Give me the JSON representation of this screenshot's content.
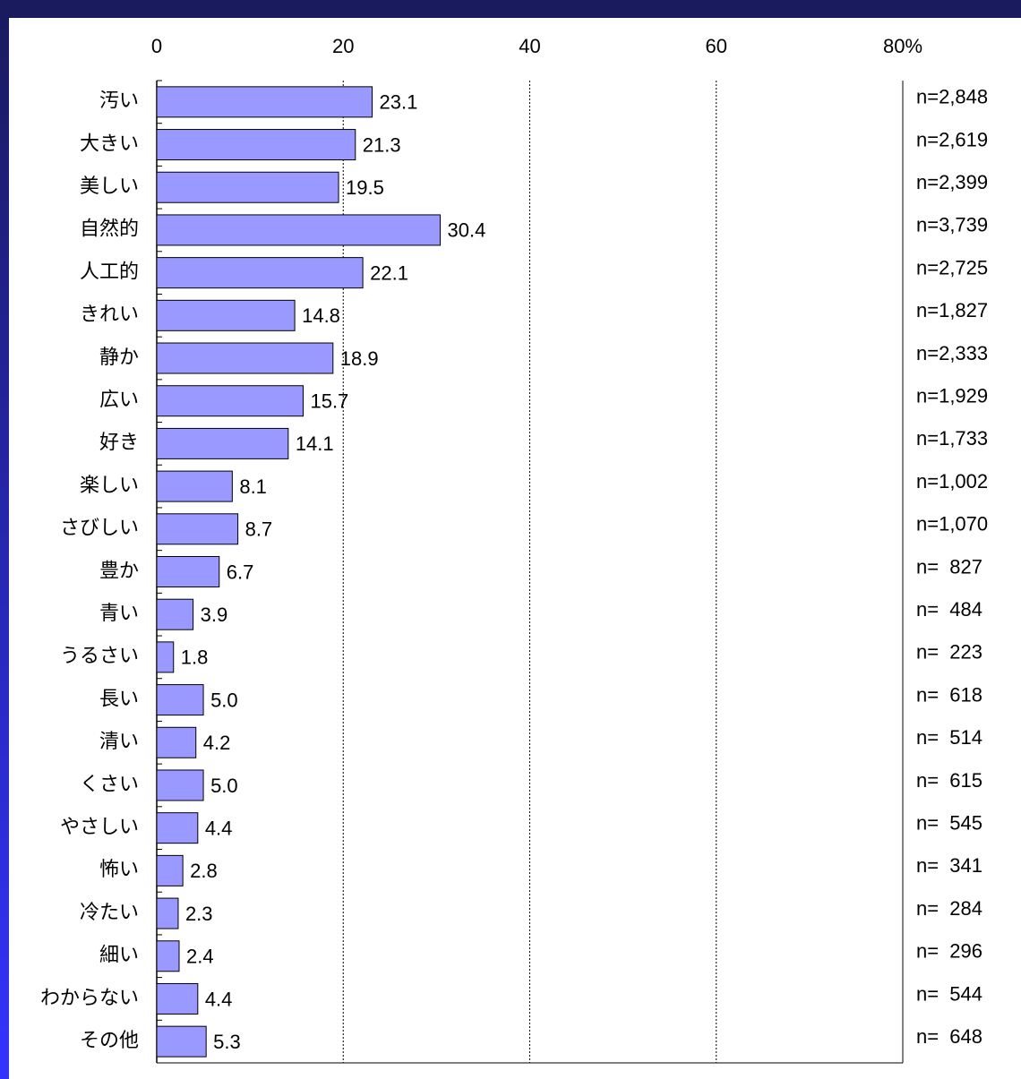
{
  "chart_data": {
    "type": "bar",
    "orientation": "horizontal",
    "categories": [
      "汚い",
      "大きい",
      "美しい",
      "自然的",
      "人工的",
      "きれい",
      "静か",
      "広い",
      "好き",
      "楽しい",
      "さびしい",
      "豊か",
      "青い",
      "うるさい",
      "長い",
      "清い",
      "くさい",
      "やさしい",
      "怖い",
      "冷たい",
      "細い",
      "わからない",
      "その他"
    ],
    "values": [
      23.1,
      21.3,
      19.5,
      30.4,
      22.1,
      14.8,
      18.9,
      15.7,
      14.1,
      8.1,
      8.7,
      6.7,
      3.9,
      1.8,
      5.0,
      4.2,
      5.0,
      4.4,
      2.8,
      2.3,
      2.4,
      4.4,
      5.3
    ],
    "value_labels": [
      "23.1",
      "21.3",
      "19.5",
      "30.4",
      "22.1",
      "14.8",
      "18.9",
      "15.7",
      "14.1",
      "8.1",
      "8.7",
      "6.7",
      "3.9",
      "1.8",
      "5.0",
      "4.2",
      "5.0",
      "4.4",
      "2.8",
      "2.3",
      "2.4",
      "4.4",
      "5.3"
    ],
    "n_labels": [
      "n=2,848",
      "n=2,619",
      "n=2,399",
      "n=3,739",
      "n=2,725",
      "n=1,827",
      "n=2,333",
      "n=1,929",
      "n=1,733",
      "n=1,002",
      "n=1,070",
      "n=  827",
      "n=  484",
      "n=  223",
      "n=  618",
      "n=  514",
      "n=  615",
      "n=  545",
      "n=  341",
      "n=  284",
      "n=  296",
      "n=  544",
      "n=  648"
    ],
    "color": "#9999ff",
    "xlim": [
      0,
      80
    ],
    "xticks": [
      0,
      20,
      40,
      60,
      {
        "value": 80,
        "label": "80%"
      }
    ],
    "grid": true
  }
}
